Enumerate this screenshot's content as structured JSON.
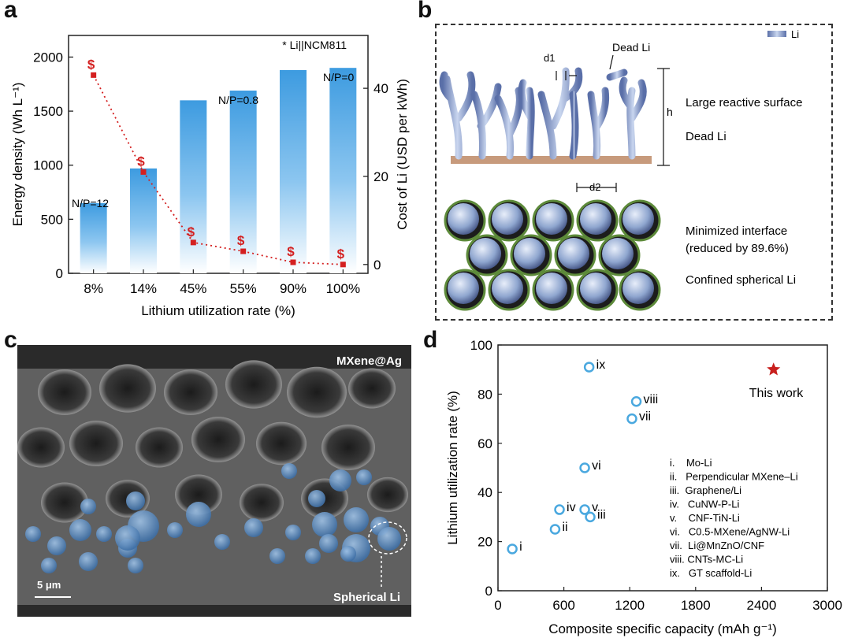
{
  "panels": {
    "a": "a",
    "b": "b",
    "c": "c",
    "d": "d"
  },
  "panel_a": {
    "legend_note": "* Li||NCM811",
    "annotations": [
      "N/P=12",
      "N/P=0.8",
      "N/P=0"
    ],
    "dollar": "$"
  },
  "panel_b": {
    "legend": "Li",
    "labels": {
      "d1": "d1",
      "d2": "d2",
      "h": "h",
      "dead_li_top": "Dead Li",
      "large_surface": "Large reactive surface",
      "dead_li": "Dead Li",
      "minimized": "Minimized interface",
      "reduced": "(reduced by 89.6%)",
      "confined": "Confined spherical Li"
    },
    "colors": {
      "li": "#8fa6cf",
      "shell": "#5d8a3a",
      "substrate": "#c79a7c"
    }
  },
  "panel_c": {
    "title": "MXene@Ag",
    "scale_bar": "5 μm",
    "annotation": "Spherical Li",
    "colors": {
      "spheres": "#5f8fc4",
      "background": "#2a2a2a"
    }
  },
  "panel_d": {
    "legend_items": [
      "i.    Mo-Li",
      "ii.   Perpendicular MXene–Li",
      "iii.  Graphene/Li",
      "iv.   CuNW-P-Li",
      "v.    CNF-TiN-Li",
      "vi.   C0.5-MXene/AgNW-Li",
      "vii.  Li@MnZnO/CNF",
      "viii. CNTs-MC-Li",
      "ix.   GT scaffold-Li"
    ],
    "this_work_label": "This work"
  },
  "chart_data": [
    {
      "type": "bar",
      "panel": "a",
      "categories": [
        "8%",
        "14%",
        "45%",
        "55%",
        "90%",
        "100%"
      ],
      "series": [
        {
          "values": [
            650,
            970,
            1600,
            1690,
            1880,
            1900
          ]
        },
        {
          "values": [
            43,
            21,
            5,
            3,
            0.5,
            0
          ]
        }
      ],
      "xlabel": "Lithium utilization rate (%)",
      "ylabel": "Energy density (Wh L⁻¹)",
      "y2label": "Cost of Li (USD per kWh)",
      "ylim": [
        0,
        2200
      ],
      "yticks": [
        0,
        500,
        1000,
        1500,
        2000
      ],
      "y2lim": [
        -2,
        52
      ],
      "y2ticks": [
        0,
        20,
        40
      ],
      "colors": {
        "bar": "#3d9be0",
        "cost": "#d42020"
      }
    },
    {
      "type": "scatter",
      "panel": "d",
      "points": [
        {
          "label": "i",
          "x": 130,
          "y": 17
        },
        {
          "label": "ii",
          "x": 520,
          "y": 25
        },
        {
          "label": "iii",
          "x": 840,
          "y": 30
        },
        {
          "label": "iv",
          "x": 560,
          "y": 33
        },
        {
          "label": "v",
          "x": 790,
          "y": 33
        },
        {
          "label": "vi",
          "x": 790,
          "y": 50
        },
        {
          "label": "vii",
          "x": 1220,
          "y": 70
        },
        {
          "label": "viii",
          "x": 1260,
          "y": 77
        },
        {
          "label": "ix",
          "x": 830,
          "y": 91
        }
      ],
      "this_work": {
        "x": 2510,
        "y": 90
      },
      "xlabel": "Composite specific capacity (mAh g⁻¹)",
      "ylabel": "Lithium utilization rate  (%)",
      "xlim": [
        0,
        3000
      ],
      "xticks": [
        0,
        600,
        1200,
        1800,
        2400,
        3000
      ],
      "ylim": [
        0,
        100
      ],
      "yticks": [
        0,
        20,
        40,
        60,
        80,
        100
      ],
      "colors": {
        "points": "#4aa8df",
        "star": "#c8201e"
      }
    }
  ]
}
